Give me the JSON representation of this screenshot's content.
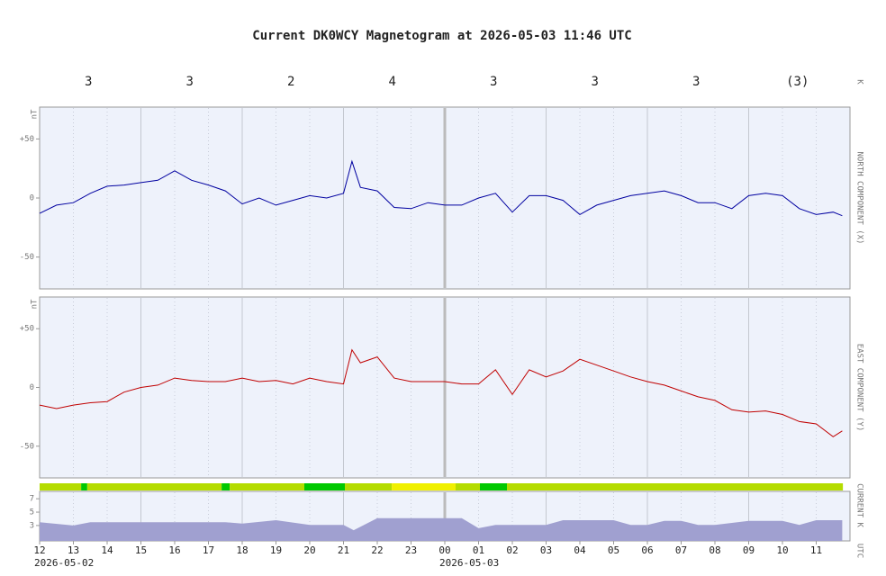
{
  "title": "Current DK0WCY Magnetogram at 2026-05-03 11:46 UTC",
  "k_index": {
    "label": "K",
    "values": [
      3,
      3,
      2,
      4,
      3,
      3,
      3,
      3
    ],
    "value_labels": [
      "3",
      "3",
      "2",
      "4",
      "3",
      "3",
      "3",
      "(3)"
    ]
  },
  "status_bar": {
    "segments": [
      {
        "start": 0,
        "end": 1.23,
        "color": "#b4dc00"
      },
      {
        "start": 1.23,
        "end": 1.41,
        "color": "#00c800"
      },
      {
        "start": 1.41,
        "end": 5.39,
        "color": "#b4dc00"
      },
      {
        "start": 5.39,
        "end": 5.63,
        "color": "#00c800"
      },
      {
        "start": 5.63,
        "end": 7.84,
        "color": "#b4dc00"
      },
      {
        "start": 7.84,
        "end": 9.04,
        "color": "#00c800"
      },
      {
        "start": 9.04,
        "end": 10.43,
        "color": "#b4dc00"
      },
      {
        "start": 10.43,
        "end": 12.32,
        "color": "#f0f000"
      },
      {
        "start": 12.32,
        "end": 13.04,
        "color": "#b4dc00"
      },
      {
        "start": 13.04,
        "end": 13.84,
        "color": "#00c800"
      },
      {
        "start": 13.84,
        "end": 23.79,
        "color": "#b4dc00"
      }
    ]
  },
  "chart_data": [
    {
      "type": "line",
      "ylabel": "NORTH COMPONENT (X)",
      "y_unit": "nT",
      "ylim": [
        -77,
        77
      ],
      "yticks": [
        {
          "value": 50,
          "label": "+50"
        },
        0,
        -50
      ],
      "x": [
        0,
        0.5,
        1,
        1.5,
        2,
        2.5,
        3,
        3.5,
        4,
        4.5,
        5,
        5.5,
        6,
        6.5,
        7,
        7.5,
        8,
        8.5,
        9,
        9.25,
        9.5,
        10,
        10.5,
        11,
        11.5,
        12,
        12.5,
        13,
        13.5,
        14,
        14.5,
        15,
        15.5,
        16,
        16.5,
        17,
        17.5,
        18,
        18.5,
        19,
        19.5,
        20,
        20.5,
        21,
        21.5,
        22,
        22.5,
        23,
        23.5,
        23.77
      ],
      "series": [
        {
          "name": "North component",
          "color": "#0000a0",
          "values": [
            -13,
            -6,
            -4,
            4,
            10,
            11,
            13,
            15,
            23,
            15,
            11,
            6,
            -5,
            0,
            -6,
            -2,
            2,
            0,
            4,
            31,
            9,
            6,
            -8,
            -9,
            -4,
            -6,
            -6,
            0,
            4,
            -12,
            2,
            2,
            -2,
            -14,
            -6,
            -2,
            2,
            4,
            6,
            2,
            -4,
            -4,
            -9,
            2,
            4,
            2,
            -9,
            -14,
            -12,
            -15
          ]
        }
      ]
    },
    {
      "type": "line",
      "ylabel": "EAST COMPONENT (Y)",
      "y_unit": "nT",
      "ylim": [
        -77,
        77
      ],
      "yticks": [
        {
          "value": 50,
          "label": "+50"
        },
        0,
        -50
      ],
      "x": [
        0,
        0.5,
        1,
        1.5,
        2,
        2.5,
        3,
        3.5,
        4,
        4.5,
        5,
        5.5,
        6,
        6.5,
        7,
        7.5,
        8,
        8.5,
        9,
        9.25,
        9.5,
        10,
        10.5,
        11,
        11.5,
        12,
        12.5,
        13,
        13.5,
        14,
        14.5,
        15,
        15.5,
        16,
        16.5,
        17,
        17.5,
        18,
        18.5,
        19,
        19.5,
        20,
        20.5,
        21,
        21.5,
        22,
        22.5,
        23,
        23.5,
        23.77
      ],
      "series": [
        {
          "name": "East component",
          "color": "#c00000",
          "values": [
            -15,
            -18,
            -15,
            -13,
            -12,
            -4,
            0,
            2,
            8,
            6,
            5,
            5,
            8,
            5,
            6,
            3,
            8,
            5,
            3,
            32,
            21,
            26,
            8,
            5,
            5,
            5,
            3,
            3,
            15,
            -6,
            15,
            9,
            14,
            24,
            19,
            14,
            9,
            5,
            2,
            -3,
            -8,
            -11,
            -19,
            -21,
            -20,
            -23,
            -29,
            -31,
            -42,
            -37
          ]
        }
      ]
    },
    {
      "type": "area",
      "ylabel": "CURRENT K",
      "xlabel": "UTC",
      "ylim": [
        0.7,
        8.1
      ],
      "yticks": [
        7,
        5,
        3
      ],
      "xlim": [
        0,
        24
      ],
      "xticks": [
        {
          "value": 0,
          "label": "12"
        },
        {
          "value": 1,
          "label": "13"
        },
        {
          "value": 2,
          "label": "14"
        },
        {
          "value": 3,
          "label": "15"
        },
        {
          "value": 4,
          "label": "16"
        },
        {
          "value": 5,
          "label": "17"
        },
        {
          "value": 6,
          "label": "18"
        },
        {
          "value": 7,
          "label": "19"
        },
        {
          "value": 8,
          "label": "20"
        },
        {
          "value": 9,
          "label": "21"
        },
        {
          "value": 10,
          "label": "22"
        },
        {
          "value": 11,
          "label": "23"
        },
        {
          "value": 12,
          "label": "00"
        },
        {
          "value": 13,
          "label": "01"
        },
        {
          "value": 14,
          "label": "02"
        },
        {
          "value": 15,
          "label": "03"
        },
        {
          "value": 16,
          "label": "04"
        },
        {
          "value": 17,
          "label": "05"
        },
        {
          "value": 18,
          "label": "06"
        },
        {
          "value": 19,
          "label": "07"
        },
        {
          "value": 20,
          "label": "08"
        },
        {
          "value": 21,
          "label": "09"
        },
        {
          "value": 22,
          "label": "10"
        },
        {
          "value": 23,
          "label": "11"
        }
      ],
      "annotations": [
        {
          "text": "2026-05-02",
          "x": 0
        },
        {
          "text": "2026-05-03",
          "x": 12
        }
      ],
      "x": [
        0,
        1,
        1.5,
        3,
        5.5,
        6,
        7,
        8,
        9,
        9.3,
        10,
        12,
        12.5,
        13,
        13.5,
        15,
        15.5,
        17,
        17.5,
        18,
        18.5,
        19,
        19.5,
        20,
        21,
        22,
        22.5,
        23,
        23.77
      ],
      "series": [
        {
          "name": "Current K",
          "color": "#a0a0d0",
          "values": [
            3.5,
            3.0,
            3.5,
            3.5,
            3.5,
            3.3,
            3.8,
            3.1,
            3.1,
            2.3,
            4.1,
            4.1,
            4.1,
            2.6,
            3.1,
            3.1,
            3.8,
            3.8,
            3.1,
            3.1,
            3.7,
            3.7,
            3.1,
            3.1,
            3.7,
            3.7,
            3.1,
            3.8,
            3.8
          ]
        }
      ]
    }
  ]
}
